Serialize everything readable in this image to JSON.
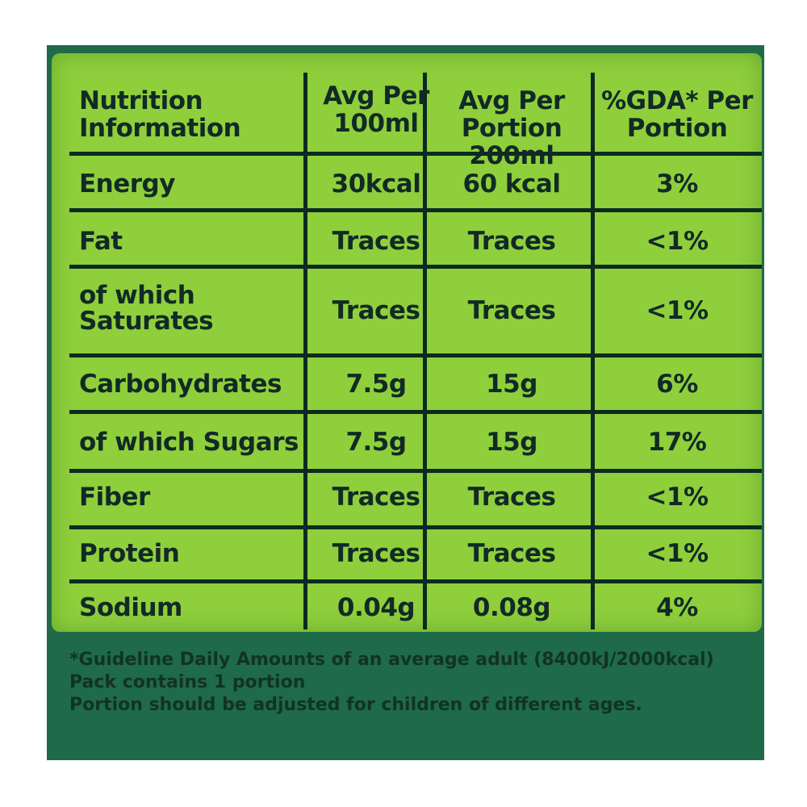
{
  "table": {
    "headers": {
      "label_line1": "Nutrition",
      "label_line2": "Information",
      "col1_line1": "Avg Per",
      "col1_line2": "100ml",
      "col2_line1": "Avg Per",
      "col2_line2": "Portion 200ml",
      "col3_line1": "%GDA* Per",
      "col3_line2": "Portion"
    },
    "rows": [
      {
        "label": "Energy",
        "per100": "30kcal",
        "perPortion": "60 kcal",
        "gda": "3%"
      },
      {
        "label": "Fat",
        "per100": "Traces",
        "perPortion": "Traces",
        "gda": "<1%"
      },
      {
        "label_line1": "of which",
        "label_line2": "Saturates",
        "per100": "Traces",
        "perPortion": "Traces",
        "gda": "<1%"
      },
      {
        "label": "Carbohydrates",
        "per100": "7.5g",
        "perPortion": "15g",
        "gda": "6%"
      },
      {
        "label": "of which Sugars",
        "per100": "7.5g",
        "perPortion": "15g",
        "gda": "17%"
      },
      {
        "label": "Fiber",
        "per100": "Traces",
        "perPortion": "Traces",
        "gda": "<1%"
      },
      {
        "label": "Protein",
        "per100": "Traces",
        "perPortion": "Traces",
        "gda": "<1%"
      },
      {
        "label": "Sodium",
        "per100": "0.04g",
        "perPortion": "0.08g",
        "gda": "4%"
      }
    ]
  },
  "footer": {
    "line1": "*Guideline Daily Amounts of an average adult (8400kJ/2000kcal)",
    "line2": "Pack contains 1 portion",
    "line3": "Portion should be adjusted for children of different ages."
  },
  "colors": {
    "panel": "#8fcf3c",
    "background": "#1f6a48",
    "text": "#122a25"
  }
}
